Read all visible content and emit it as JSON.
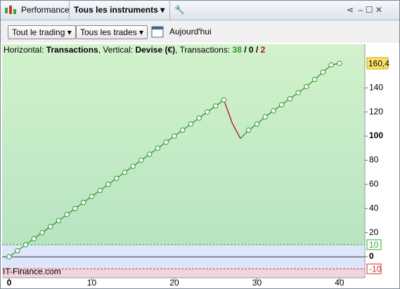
{
  "window": {
    "tab": "Performance",
    "instrument": "Tous les instruments"
  },
  "toolbar": {
    "scope": "Tout le trading",
    "trades": "Tous les trades",
    "date": "Aujourd'hui"
  },
  "header": {
    "h_label": "Horizontal:",
    "h_value": "Transactions",
    "v_label": ", Vertical:",
    "v_value": "Devise (€)",
    "t_label": ", Transactions:",
    "wins": "38",
    "even": "0",
    "losses": "2",
    "sep": "/"
  },
  "watermark": "IT-Finance.com",
  "chart_data": {
    "type": "line",
    "x": [
      0,
      1,
      2,
      3,
      4,
      5,
      6,
      7,
      8,
      9,
      10,
      11,
      12,
      13,
      14,
      15,
      16,
      17,
      18,
      19,
      20,
      21,
      22,
      23,
      24,
      25,
      26,
      27,
      28,
      29,
      30,
      31,
      32,
      33,
      34,
      35,
      36,
      37,
      38,
      39,
      40
    ],
    "series": [
      {
        "color": "#2a9a2a",
        "loss_color": "#b01010",
        "values": [
          0,
          5,
          10,
          15,
          20,
          25,
          30,
          35,
          40,
          45,
          50,
          55,
          60,
          65,
          70,
          75,
          80,
          85,
          90,
          95,
          100,
          105,
          110,
          115,
          120,
          125,
          130,
          111,
          98,
          105,
          110,
          116,
          121,
          126,
          131,
          136,
          141,
          147,
          153,
          159,
          160.4
        ],
        "losses": [
          27,
          28
        ]
      }
    ],
    "xlim": [
      -0.85,
      43.07
    ],
    "ylim": [
      -17.4,
      176.2
    ],
    "xticks": [
      0,
      10,
      20,
      30,
      40
    ],
    "yticks": [
      0,
      20,
      40,
      60,
      80,
      100,
      120,
      140
    ],
    "bold_ticks": [
      0,
      100
    ],
    "thresholds": [
      10,
      -10
    ],
    "current": {
      "value": 160.4,
      "label": "160,4"
    }
  }
}
